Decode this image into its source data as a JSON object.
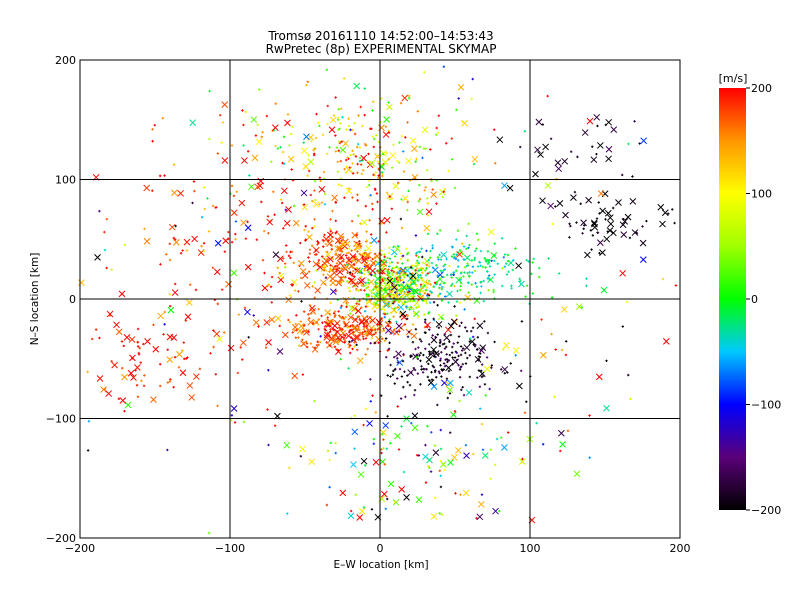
{
  "chart_data": {
    "type": "scatter",
    "title": "Tromsø 20161110 14:52:00–14:53:43",
    "subtitle": "RwPretec (8p) EXPERIMENTAL SKYMAP",
    "xlabel": "E–W location [km]",
    "ylabel": "N–S location [km]",
    "xlim": [
      -200,
      200
    ],
    "ylim": [
      -200,
      200
    ],
    "xticks": [
      -200,
      -100,
      0,
      100,
      200
    ],
    "yticks": [
      -200,
      -100,
      0,
      100,
      200
    ],
    "xtick_labels": [
      "−200",
      "−100",
      "0",
      "100",
      "200"
    ],
    "ytick_labels": [
      "−200",
      "−100",
      "0",
      "100",
      "200"
    ],
    "grid": true,
    "colorbar": {
      "label": "[m/s]",
      "range": [
        -200,
        200
      ],
      "ticks": [
        200,
        100,
        0,
        -100,
        -200
      ],
      "tick_labels": [
        "200",
        "100",
        "0",
        "−100",
        "−200"
      ],
      "stops": [
        {
          "v": -200,
          "color": "#000000"
        },
        {
          "v": -150,
          "color": "#5a0078"
        },
        {
          "v": -100,
          "color": "#0000ff"
        },
        {
          "v": -50,
          "color": "#00c8ff"
        },
        {
          "v": 0,
          "color": "#00ff00"
        },
        {
          "v": 50,
          "color": "#a0ff00"
        },
        {
          "v": 100,
          "color": "#ffff00"
        },
        {
          "v": 150,
          "color": "#ff9600"
        },
        {
          "v": 200,
          "color": "#ff0000"
        }
      ]
    },
    "markers": {
      "large": "x",
      "small": "+"
    },
    "clusters": [
      {
        "cx": 10,
        "cy": 10,
        "sx": 15,
        "sy": 12,
        "n": 520,
        "v": 60,
        "vs": 70,
        "big": 0.08
      },
      {
        "cx": -25,
        "cy": 33,
        "sx": 16,
        "sy": 14,
        "n": 230,
        "v": 170,
        "vs": 35,
        "big": 0.3
      },
      {
        "cx": -25,
        "cy": -25,
        "sx": 22,
        "sy": 10,
        "n": 260,
        "v": 175,
        "vs": 30,
        "big": 0.25
      },
      {
        "cx": 40,
        "cy": -50,
        "sx": 22,
        "sy": 18,
        "n": 230,
        "v": -185,
        "vs": 25,
        "big": 0.1
      },
      {
        "cx": 55,
        "cy": 25,
        "sx": 25,
        "sy": 14,
        "n": 230,
        "v": -20,
        "vs": 30,
        "big": 0.05
      },
      {
        "cx": -10,
        "cy": 120,
        "sx": 35,
        "sy": 25,
        "n": 260,
        "v": 120,
        "vs": 80,
        "big": 0.15
      },
      {
        "cx": -155,
        "cy": -50,
        "sx": 22,
        "sy": 18,
        "n": 75,
        "v": 190,
        "vs": 20,
        "big": 0.45
      },
      {
        "cx": 145,
        "cy": 65,
        "sx": 20,
        "sy": 14,
        "n": 65,
        "v": -195,
        "vs": 10,
        "big": 0.55
      },
      {
        "cx": 130,
        "cy": 130,
        "sx": 20,
        "sy": 12,
        "n": 25,
        "v": -190,
        "vs": 15,
        "big": 0.7
      },
      {
        "cx": 20,
        "cy": -140,
        "sx": 45,
        "sy": 35,
        "n": 120,
        "v": 40,
        "vs": 130,
        "big": 0.3
      },
      {
        "cx": -80,
        "cy": 60,
        "sx": 45,
        "sy": 55,
        "n": 170,
        "v": 185,
        "vs": 35,
        "big": 0.3
      },
      {
        "cx": 0,
        "cy": 0,
        "sx": 110,
        "sy": 110,
        "n": 230,
        "v": 40,
        "vs": 150,
        "big": 0.35
      }
    ]
  }
}
